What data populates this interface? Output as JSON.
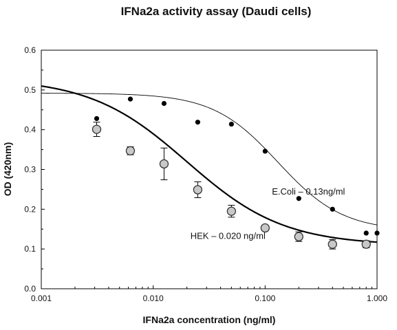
{
  "chart_data": {
    "type": "scatter",
    "title": "IFNa2a activity assay (Daudi cells)",
    "xlabel": "IFNa2a concentration (ng/ml)",
    "ylabel": "OD  (420nm)",
    "xscale": "log",
    "xlim": [
      0.001,
      1.0
    ],
    "ylim": [
      0.0,
      0.6
    ],
    "grid": false,
    "legend": "none",
    "xticks": [
      {
        "value": 0.001,
        "label": "0.001"
      },
      {
        "value": 0.01,
        "label": "0.010"
      },
      {
        "value": 0.1,
        "label": "0.100"
      },
      {
        "value": 1.0,
        "label": "1.000"
      }
    ],
    "yticks": [
      {
        "value": 0.0,
        "label": "0.0"
      },
      {
        "value": 0.1,
        "label": "0.1"
      },
      {
        "value": 0.2,
        "label": "0.2"
      },
      {
        "value": 0.3,
        "label": "0.3"
      },
      {
        "value": 0.4,
        "label": "0.4"
      },
      {
        "value": 0.5,
        "label": "0.5"
      },
      {
        "value": 0.6,
        "label": "0.6"
      }
    ],
    "series": [
      {
        "name": "E.Coli",
        "marker": "filled-circle",
        "color": "#000000",
        "x": [
          0.003125,
          0.00625,
          0.0125,
          0.025,
          0.05,
          0.1,
          0.2,
          0.4,
          0.8,
          1.0
        ],
        "y": [
          0.428,
          0.477,
          0.466,
          0.419,
          0.414,
          0.346,
          0.227,
          0.2,
          0.14,
          0.14
        ],
        "fit": {
          "top": 0.492,
          "bottom": 0.145,
          "ec50": 0.13,
          "hill": 1.5,
          "stroke_width": 0.9
        }
      },
      {
        "name": "HEK",
        "marker": "open-circle-gray",
        "color": "#c8c8c8",
        "x": [
          0.003125,
          0.00625,
          0.0125,
          0.025,
          0.05,
          0.1,
          0.2,
          0.4,
          0.8
        ],
        "y": [
          0.401,
          0.347,
          0.314,
          0.249,
          0.195,
          0.153,
          0.131,
          0.112,
          0.112
        ],
        "err": [
          0.018,
          0.01,
          0.04,
          0.02,
          0.015,
          0.007,
          0.012,
          0.012,
          0.009
        ],
        "fit": {
          "top": 0.53,
          "bottom": 0.109,
          "ec50": 0.02,
          "hill": 1.0,
          "stroke_width": 2.2
        }
      }
    ],
    "annotations": [
      {
        "text": "E.Coli – 0.13ng/ml",
        "x": 0.115,
        "y": 0.237
      },
      {
        "text": "HEK – 0.020 ng/ml",
        "x": 0.0215,
        "y": 0.125
      }
    ]
  }
}
